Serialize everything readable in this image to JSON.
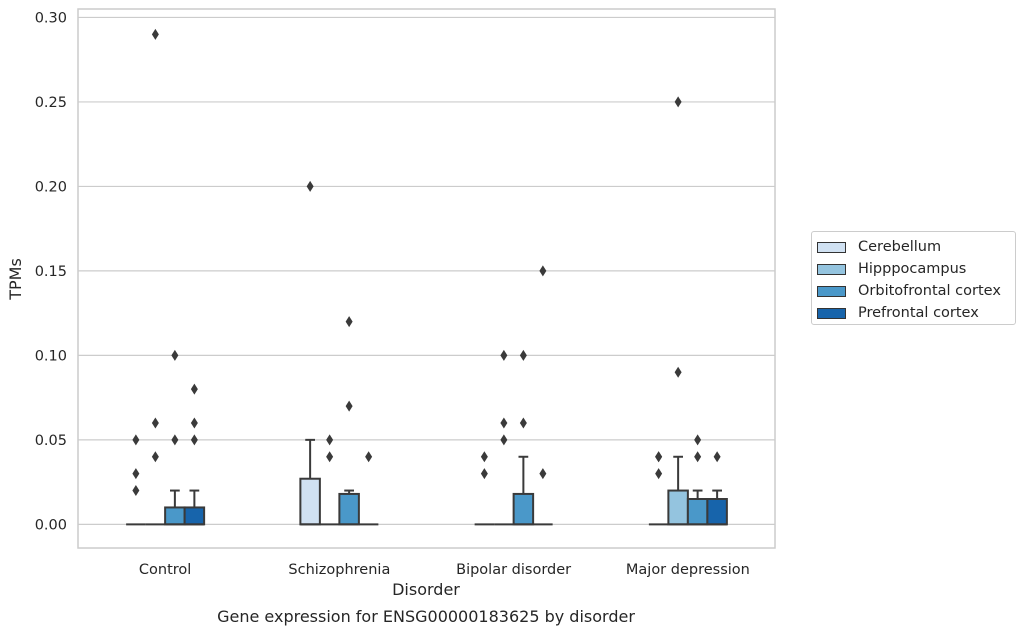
{
  "chart_data": {
    "type": "box",
    "title": "Gene expression for ENSG00000183625 by disorder",
    "xlabel": "Disorder",
    "ylabel": "TPMs",
    "ylim": [
      -0.014,
      0.305
    ],
    "yticks": [
      0.0,
      0.05,
      0.1,
      0.15,
      0.2,
      0.25,
      0.3
    ],
    "ytick_labels": [
      "0.00",
      "0.05",
      "0.10",
      "0.15",
      "0.20",
      "0.25",
      "0.30"
    ],
    "grid": "horizontal",
    "legend_position": "right",
    "categories": [
      "Control",
      "Schizophrenia",
      "Bipolar disorder",
      "Major depression"
    ],
    "series": [
      {
        "name": "Cerebellum",
        "color": "#d0e1f2",
        "boxes": [
          {
            "q1": 0.0,
            "median": 0.0,
            "q3": 0.0,
            "whisker_low": 0.0,
            "whisker_high": 0.0,
            "outliers": [
              0.02,
              0.03,
              0.05
            ]
          },
          {
            "q1": 0.0,
            "median": 0.0,
            "q3": 0.027,
            "whisker_low": 0.0,
            "whisker_high": 0.05,
            "outliers": [
              0.2
            ]
          },
          {
            "q1": 0.0,
            "median": 0.0,
            "q3": 0.0,
            "whisker_low": 0.0,
            "whisker_high": 0.0,
            "outliers": [
              0.03,
              0.04
            ]
          },
          {
            "q1": 0.0,
            "median": 0.0,
            "q3": 0.0,
            "whisker_low": 0.0,
            "whisker_high": 0.0,
            "outliers": [
              0.03,
              0.04,
              0.04
            ]
          }
        ]
      },
      {
        "name": "Hipppocampus",
        "color": "#94c4df",
        "boxes": [
          {
            "q1": 0.0,
            "median": 0.0,
            "q3": 0.0,
            "whisker_low": 0.0,
            "whisker_high": 0.0,
            "outliers": [
              0.04,
              0.06,
              0.29
            ]
          },
          {
            "q1": 0.0,
            "median": 0.0,
            "q3": 0.0,
            "whisker_low": 0.0,
            "whisker_high": 0.0,
            "outliers": [
              0.04,
              0.05
            ]
          },
          {
            "q1": 0.0,
            "median": 0.0,
            "q3": 0.0,
            "whisker_low": 0.0,
            "whisker_high": 0.0,
            "outliers": [
              0.05,
              0.06,
              0.1
            ]
          },
          {
            "q1": 0.0,
            "median": 0.0,
            "q3": 0.02,
            "whisker_low": 0.0,
            "whisker_high": 0.04,
            "outliers": [
              0.09,
              0.25
            ]
          }
        ]
      },
      {
        "name": "Orbitofrontal cortex",
        "color": "#4a98c9",
        "boxes": [
          {
            "q1": 0.0,
            "median": 0.0,
            "q3": 0.01,
            "whisker_low": 0.0,
            "whisker_high": 0.02,
            "outliers": [
              0.05,
              0.1
            ]
          },
          {
            "q1": 0.0,
            "median": 0.0,
            "q3": 0.018,
            "whisker_low": 0.0,
            "whisker_high": 0.02,
            "outliers": [
              0.07,
              0.12
            ]
          },
          {
            "q1": 0.0,
            "median": 0.0,
            "q3": 0.018,
            "whisker_low": 0.0,
            "whisker_high": 0.04,
            "outliers": [
              0.06,
              0.1
            ]
          },
          {
            "q1": 0.0,
            "median": 0.0,
            "q3": 0.015,
            "whisker_low": 0.0,
            "whisker_high": 0.02,
            "outliers": [
              0.04,
              0.05
            ]
          }
        ]
      },
      {
        "name": "Prefrontal cortex",
        "color": "#1764ab",
        "boxes": [
          {
            "q1": 0.0,
            "median": 0.0,
            "q3": 0.01,
            "whisker_low": 0.0,
            "whisker_high": 0.02,
            "outliers": [
              0.05,
              0.06,
              0.08
            ]
          },
          {
            "q1": 0.0,
            "median": 0.0,
            "q3": 0.0,
            "whisker_low": 0.0,
            "whisker_high": 0.0,
            "outliers": [
              0.04
            ]
          },
          {
            "q1": 0.0,
            "median": 0.0,
            "q3": 0.0,
            "whisker_low": 0.0,
            "whisker_high": 0.0,
            "outliers": [
              0.03,
              0.15
            ]
          },
          {
            "q1": 0.0,
            "median": 0.0,
            "q3": 0.015,
            "whisker_low": 0.0,
            "whisker_high": 0.02,
            "outliers": [
              0.04
            ]
          }
        ]
      }
    ]
  }
}
